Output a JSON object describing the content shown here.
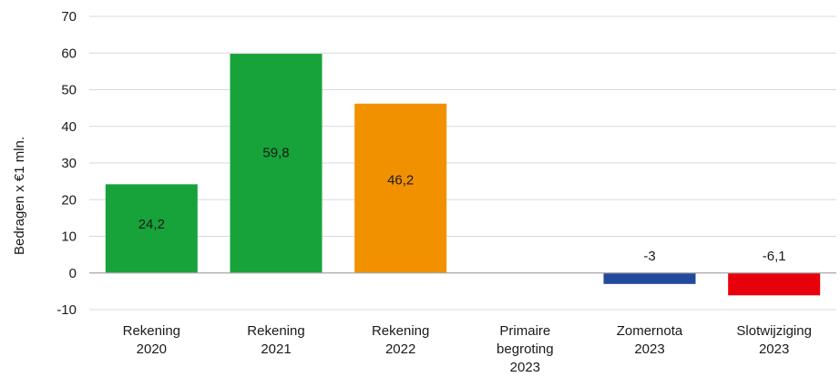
{
  "chart_data": {
    "type": "bar",
    "ylabel": "Bedragen x €1 mln.",
    "ylim": [
      -10,
      70
    ],
    "yticks": [
      -10,
      0,
      10,
      20,
      30,
      40,
      50,
      60,
      70
    ],
    "grid": true,
    "categories": [
      [
        "Rekening",
        "2020"
      ],
      [
        "Rekening",
        "2021"
      ],
      [
        "Rekening",
        "2022"
      ],
      [
        "Primaire",
        "begroting",
        "2023"
      ],
      [
        "Zomernota",
        "2023"
      ],
      [
        "Slotwijziging",
        "2023"
      ]
    ],
    "values": [
      24.2,
      59.8,
      46.2,
      null,
      -3,
      -6.1
    ],
    "data_labels": [
      "24,2",
      "59,8",
      "46,2",
      "",
      "-3",
      "-6,1"
    ],
    "colors": [
      "#17a33a",
      "#17a33a",
      "#f29100",
      null,
      "#234a9c",
      "#e8000b"
    ]
  }
}
